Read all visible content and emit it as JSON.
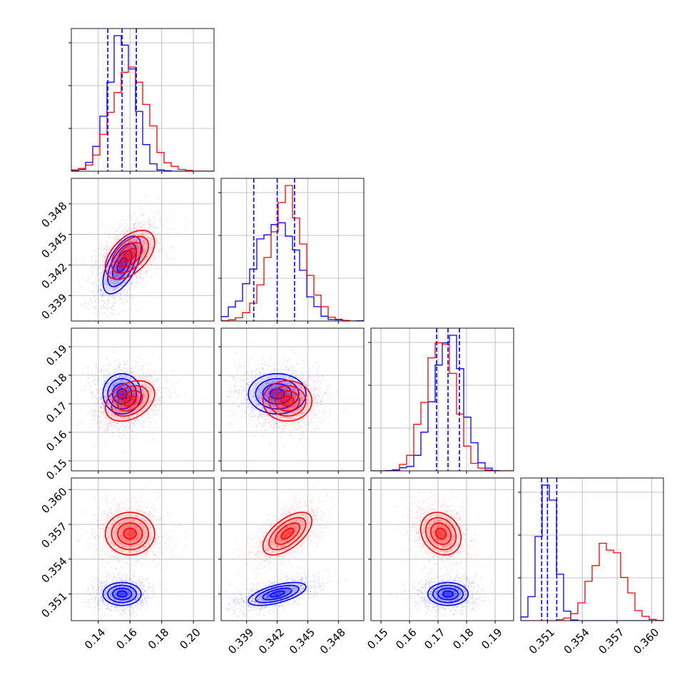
{
  "chart_data": {
    "type": "corner",
    "colors": {
      "series_a": "#0000ff",
      "series_b": "#ff0000",
      "grid": "#b0b0b0",
      "frame": "#000000"
    },
    "series": [
      {
        "color": "#0000ff",
        "mean": [
          0.155,
          0.342,
          0.1735,
          0.351
        ],
        "sd": [
          0.0085,
          0.002,
          0.005,
          0.0007
        ],
        "corr": [
          [
            1,
            0.6,
            0,
            0
          ],
          [
            0.6,
            1,
            0,
            0.6
          ],
          [
            0,
            0,
            1,
            0
          ],
          [
            0,
            0.6,
            0,
            1
          ]
        ],
        "quantiles": [
          [
            0.146,
            0.155,
            0.164
          ],
          [
            0.3397,
            0.342,
            0.3437
          ],
          [
            0.1695,
            0.1735,
            0.1775
          ],
          [
            0.3505,
            0.351,
            0.3518
          ]
        ]
      },
      {
        "color": "#ff0000",
        "mean": [
          0.16,
          0.343,
          0.171,
          0.3562
        ],
        "sd": [
          0.011,
          0.0017,
          0.005,
          0.0013
        ],
        "corr": [
          [
            1,
            0.5,
            0.35,
            0
          ],
          [
            0.5,
            1,
            0,
            0.6
          ],
          [
            0.35,
            0,
            1,
            -0.2
          ],
          [
            0,
            0.6,
            -0.2,
            1
          ]
        ]
      }
    ],
    "axes": [
      {
        "range": [
          0.123,
          0.213
        ],
        "ticks": [
          0.14,
          0.16,
          0.18,
          0.2
        ],
        "tick_labels": [
          "0.14",
          "0.16",
          "0.18",
          "0.20"
        ]
      },
      {
        "range": [
          0.3365,
          0.3505
        ],
        "ticks": [
          0.339,
          0.342,
          0.345,
          0.348
        ],
        "tick_labels": [
          "0.339",
          "0.342",
          "0.345",
          "0.348"
        ]
      },
      {
        "range": [
          0.1465,
          0.1965
        ],
        "ticks": [
          0.15,
          0.16,
          0.17,
          0.18,
          0.19
        ],
        "tick_labels": [
          "0.15",
          "0.16",
          "0.17",
          "0.18",
          "0.19"
        ]
      },
      {
        "range": [
          0.3487,
          0.361
        ],
        "ticks": [
          0.351,
          0.354,
          0.357,
          0.36
        ],
        "tick_labels": [
          "0.351",
          "0.354",
          "0.357",
          "0.360"
        ]
      }
    ],
    "grid": true
  }
}
